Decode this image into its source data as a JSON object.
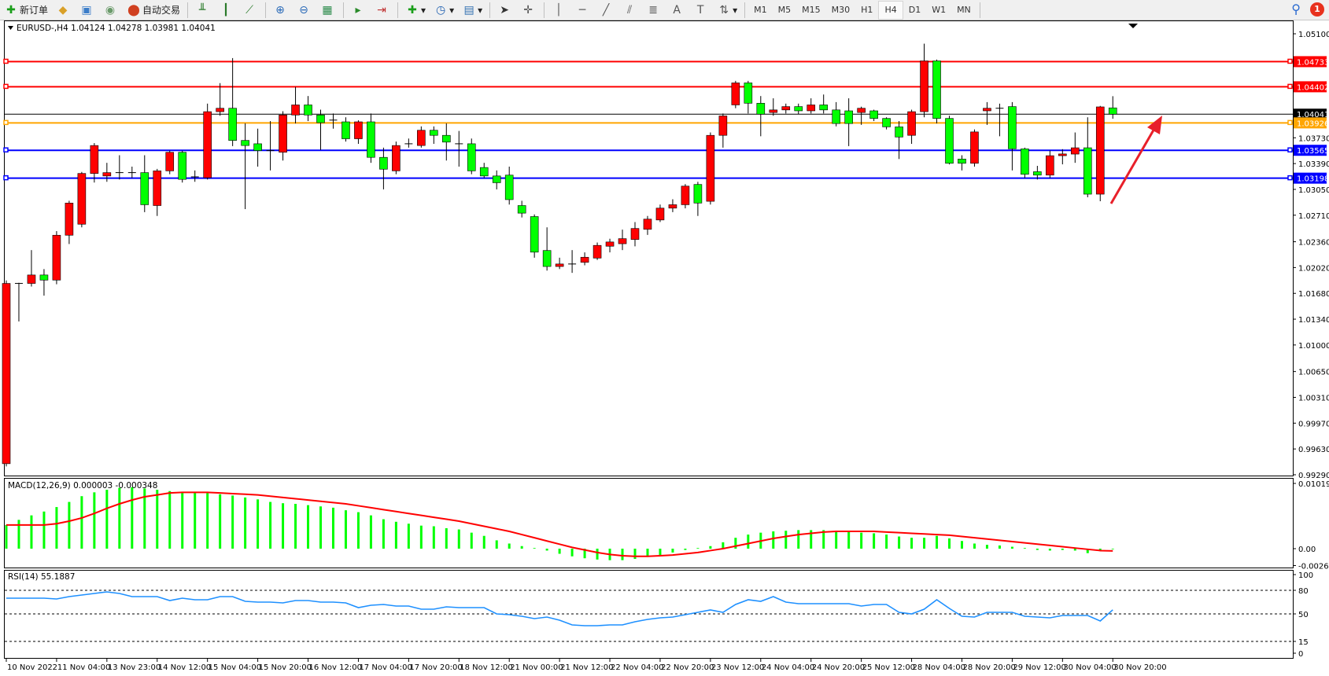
{
  "toolbar": {
    "items": [
      {
        "icon": "new-order-icon",
        "glyph": "✚",
        "color": "#1a9e1a",
        "label": "新订单"
      },
      {
        "icon": "market-watch-icon",
        "glyph": "◆",
        "color": "#d9a028",
        "label": ""
      },
      {
        "icon": "navigator-icon",
        "glyph": "▣",
        "color": "#3a7cc8",
        "label": ""
      },
      {
        "icon": "signal-icon",
        "glyph": "◉",
        "color": "#6a9a6a",
        "label": ""
      },
      {
        "icon": "auto-trading-icon",
        "glyph": "⬤",
        "color": "#d04020",
        "label": "自动交易"
      },
      {
        "sep": true
      },
      {
        "icon": "bar-chart-icon",
        "glyph": "╨",
        "color": "#2a7a2a",
        "label": ""
      },
      {
        "icon": "candlestick-chart-icon",
        "glyph": "┃",
        "color": "#2a7a2a",
        "label": ""
      },
      {
        "icon": "line-chart-icon",
        "glyph": "⟋",
        "color": "#2a7a2a",
        "label": ""
      },
      {
        "sep": true
      },
      {
        "icon": "zoom-in-icon",
        "glyph": "⊕",
        "color": "#2a6ab8",
        "label": ""
      },
      {
        "icon": "zoom-out-icon",
        "glyph": "⊖",
        "color": "#2a6ab8",
        "label": ""
      },
      {
        "icon": "tile-windows-icon",
        "glyph": "▦",
        "color": "#2a8a4a",
        "label": ""
      },
      {
        "sep": true
      },
      {
        "icon": "auto-scroll-icon",
        "glyph": "▸",
        "color": "#2a8a2a",
        "label": ""
      },
      {
        "icon": "chart-shift-icon",
        "glyph": "⇥",
        "color": "#c03030",
        "label": ""
      },
      {
        "sep": true
      },
      {
        "icon": "indicators-icon",
        "glyph": "✚",
        "color": "#1a9e1a",
        "label": "▾"
      },
      {
        "icon": "periods-clock-icon",
        "glyph": "◷",
        "color": "#2060b0",
        "label": "▾"
      },
      {
        "icon": "templates-icon",
        "glyph": "▤",
        "color": "#3070b0",
        "label": "▾"
      },
      {
        "sep": true
      },
      {
        "icon": "cursor-icon",
        "glyph": "➤",
        "color": "#333",
        "label": ""
      },
      {
        "icon": "crosshair-icon",
        "glyph": "✛",
        "color": "#555",
        "label": ""
      },
      {
        "sep": true
      },
      {
        "icon": "vertical-line-icon",
        "glyph": "│",
        "color": "#555",
        "label": ""
      },
      {
        "icon": "horizontal-line-icon",
        "glyph": "─",
        "color": "#555",
        "label": ""
      },
      {
        "icon": "trendline-icon",
        "glyph": "╱",
        "color": "#555",
        "label": ""
      },
      {
        "icon": "equidistant-channel-icon",
        "glyph": "⫽",
        "color": "#555",
        "label": ""
      },
      {
        "icon": "fibonacci-icon",
        "glyph": "≣",
        "color": "#555",
        "label": ""
      },
      {
        "icon": "text-icon",
        "glyph": "A",
        "color": "#555",
        "label": ""
      },
      {
        "icon": "text-label-icon",
        "glyph": "T",
        "color": "#555",
        "label": ""
      },
      {
        "icon": "arrows-icon",
        "glyph": "⇅",
        "color": "#555",
        "label": "▾"
      },
      {
        "sep": true
      }
    ],
    "timeframes": [
      "M1",
      "M5",
      "M15",
      "M30",
      "H1",
      "H4",
      "D1",
      "W1",
      "MN"
    ],
    "active_timeframe": "H4",
    "notification_count": "1"
  },
  "chart": {
    "title": "EURUSD-,H4  1.04124 1.04278 1.03981 1.04041",
    "colors": {
      "bull": "#ff0000",
      "bear": "#00ff00",
      "wick": "#000000"
    },
    "price_ticks": [
      "1.05100",
      "1.03730",
      "1.03390",
      "1.03050",
      "1.02710",
      "1.02360",
      "1.02020",
      "1.01680",
      "1.01340",
      "1.01000",
      "1.00650",
      "1.00310",
      "0.99970",
      "0.99630",
      "0.99290"
    ],
    "levels": [
      {
        "price": "1.04733",
        "color": "#ff0000"
      },
      {
        "price": "1.04402",
        "color": "#ff0000"
      },
      {
        "price": "1.04041",
        "color": "#000000"
      },
      {
        "price": "1.03926",
        "color": "#ffa500"
      },
      {
        "price": "1.03565",
        "color": "#0000ff"
      },
      {
        "price": "1.03198",
        "color": "#0000ff"
      }
    ],
    "arrow_color": "#e8202a",
    "time_labels": [
      "10 Nov 2022",
      "11 Nov 04:00",
      "13 Nov 23:00",
      "14 Nov 12:00",
      "15 Nov 04:00",
      "15 Nov 20:00",
      "16 Nov 12:00",
      "17 Nov 04:00",
      "17 Nov 20:00",
      "18 Nov 12:00",
      "21 Nov 00:00",
      "21 Nov 12:00",
      "22 Nov 04:00",
      "22 Nov 20:00",
      "23 Nov 12:00",
      "24 Nov 04:00",
      "24 Nov 20:00",
      "25 Nov 12:00",
      "28 Nov 04:00",
      "28 Nov 20:00",
      "29 Nov 12:00",
      "30 Nov 04:00",
      "30 Nov 20:00"
    ],
    "candles": [
      [
        0.99436,
        1.0185,
        0.994,
        1.01811
      ],
      [
        1.01811,
        1.0182,
        1.0131,
        1.018
      ],
      [
        1.01811,
        1.0225,
        1.0177,
        1.01922
      ],
      [
        1.01922,
        1.02,
        1.0165,
        1.01855
      ],
      [
        1.01855,
        1.025,
        1.018,
        1.02446
      ],
      [
        1.02446,
        1.029,
        1.0233,
        1.0287
      ],
      [
        1.02591,
        1.0328,
        1.0255,
        1.0326
      ],
      [
        1.0326,
        1.0366,
        1.0314,
        1.03628
      ],
      [
        1.03227,
        1.034,
        1.0315,
        1.03271
      ],
      [
        1.03271,
        1.035,
        1.0318,
        1.03271
      ],
      [
        1.03271,
        1.0335,
        1.032,
        1.0326
      ],
      [
        1.03271,
        1.035,
        1.0275,
        1.02848
      ],
      [
        1.02837,
        1.0332,
        1.027,
        1.03294
      ],
      [
        1.03294,
        1.0356,
        1.0325,
        1.03539
      ],
      [
        1.03539,
        1.0356,
        1.0314,
        1.03182
      ],
      [
        1.03204,
        1.033,
        1.0315,
        1.03215
      ],
      [
        1.03204,
        1.0418,
        1.0318,
        1.04074
      ],
      [
        1.04074,
        1.0445,
        1.0402,
        1.04119
      ],
      [
        1.04119,
        1.0478,
        1.0362,
        1.03695
      ],
      [
        1.03695,
        1.0392,
        1.0279,
        1.03628
      ],
      [
        1.03651,
        1.0385,
        1.0335,
        1.03561
      ],
      [
        1.03561,
        1.0395,
        1.033,
        1.03561
      ],
      [
        1.03539,
        1.0408,
        1.0343,
        1.0403
      ],
      [
        1.0403,
        1.044,
        1.0392,
        1.04163
      ],
      [
        1.04163,
        1.0428,
        1.0395,
        1.0403
      ],
      [
        1.0403,
        1.041,
        1.0357,
        1.03929
      ],
      [
        1.03963,
        1.0405,
        1.0385,
        1.03963
      ],
      [
        1.0394,
        1.04,
        1.0368,
        1.03717
      ],
      [
        1.03717,
        1.0396,
        1.0365,
        1.0394
      ],
      [
        1.0394,
        1.0405,
        1.034,
        1.03472
      ],
      [
        1.03472,
        1.036,
        1.0305,
        1.03316
      ],
      [
        1.03294,
        1.0368,
        1.0325,
        1.03628
      ],
      [
        1.03651,
        1.0372,
        1.036,
        1.03651
      ],
      [
        1.03628,
        1.0388,
        1.036,
        1.03829
      ],
      [
        1.03829,
        1.0388,
        1.0365,
        1.03762
      ],
      [
        1.03762,
        1.0392,
        1.0343,
        1.03673
      ],
      [
        1.03651,
        1.0382,
        1.0335,
        1.03651
      ],
      [
        1.03651,
        1.0372,
        1.0325,
        1.03294
      ],
      [
        1.03338,
        1.034,
        1.032,
        1.03227
      ],
      [
        1.03227,
        1.033,
        1.0305,
        1.03138
      ],
      [
        1.03238,
        1.0335,
        1.0285,
        1.02915
      ],
      [
        1.02837,
        1.029,
        1.0268,
        1.02737
      ],
      [
        1.02692,
        1.0272,
        1.0215,
        1.02223
      ],
      [
        1.02245,
        1.0255,
        1.0198,
        1.02034
      ],
      [
        1.02034,
        1.0215,
        1.02,
        1.02067
      ],
      [
        1.02067,
        1.0225,
        1.0195,
        1.02067
      ],
      [
        1.02089,
        1.0222,
        1.0205,
        1.02156
      ],
      [
        1.02145,
        1.0235,
        1.0212,
        1.02312
      ],
      [
        1.02301,
        1.024,
        1.0222,
        1.02357
      ],
      [
        1.02334,
        1.0252,
        1.0225,
        1.02401
      ],
      [
        1.0239,
        1.0262,
        1.023,
        1.02535
      ],
      [
        1.02524,
        1.027,
        1.0245,
        1.02658
      ],
      [
        1.02647,
        1.0285,
        1.0262,
        1.02803
      ],
      [
        1.02803,
        1.0292,
        1.0275,
        1.02848
      ],
      [
        1.02848,
        1.0312,
        1.028,
        1.03093
      ],
      [
        1.03115,
        1.0315,
        1.027,
        1.0287
      ],
      [
        1.02893,
        1.038,
        1.0285,
        1.03762
      ],
      [
        1.03762,
        1.0405,
        1.036,
        1.04018
      ],
      [
        1.04163,
        1.0448,
        1.0412,
        1.04453
      ],
      [
        1.04453,
        1.0448,
        1.0405,
        1.04185
      ],
      [
        1.04185,
        1.0428,
        1.0375,
        1.04041
      ],
      [
        1.04063,
        1.0425,
        1.0402,
        1.04097
      ],
      [
        1.04097,
        1.0418,
        1.0405,
        1.04141
      ],
      [
        1.04141,
        1.0418,
        1.0404,
        1.04085
      ],
      [
        1.04085,
        1.0425,
        1.0405,
        1.04163
      ],
      [
        1.04163,
        1.043,
        1.0405,
        1.04097
      ],
      [
        1.04097,
        1.042,
        1.0388,
        1.03918
      ],
      [
        1.04085,
        1.0425,
        1.0362,
        1.03918
      ],
      [
        1.04063,
        1.0414,
        1.039,
        1.04119
      ],
      [
        1.04085,
        1.041,
        1.0395,
        1.03985
      ],
      [
        1.03985,
        1.04,
        1.0384,
        1.03874
      ],
      [
        1.03874,
        1.0395,
        1.0345,
        1.0374
      ],
      [
        1.03762,
        1.041,
        1.0365,
        1.04074
      ],
      [
        1.04074,
        1.0497,
        1.04,
        1.04743
      ],
      [
        1.04743,
        1.0476,
        1.0392,
        1.03985
      ],
      [
        1.03985,
        1.0402,
        1.0338,
        1.03394
      ],
      [
        1.0345,
        1.035,
        1.033,
        1.03394
      ],
      [
        1.03394,
        1.0384,
        1.0335,
        1.03807
      ],
      [
        1.04085,
        1.042,
        1.039,
        1.04119
      ],
      [
        1.04119,
        1.0418,
        1.0375,
        1.04119
      ],
      [
        1.04141,
        1.042,
        1.033,
        1.03584
      ],
      [
        1.03584,
        1.036,
        1.032,
        1.03249
      ],
      [
        1.03283,
        1.0336,
        1.0318,
        1.03238
      ],
      [
        1.03238,
        1.0356,
        1.032,
        1.03494
      ],
      [
        1.03494,
        1.0358,
        1.0338,
        1.03517
      ],
      [
        1.03515,
        1.038,
        1.034,
        1.03598
      ],
      [
        1.03598,
        1.04,
        1.02946,
        1.02987
      ],
      [
        1.02987,
        1.0415,
        1.02894,
        1.04137
      ],
      [
        1.04124,
        1.04278,
        1.03981,
        1.04041
      ]
    ]
  },
  "macd": {
    "label": "MACD(12,26,9) 0.000003 -0.000348",
    "ticks": [
      "0.010191",
      "0.00",
      "-0.002642"
    ],
    "hist_color": "#00ff00",
    "signal_color": "#ff0000",
    "hist": [
      0.0037,
      0.0045,
      0.0052,
      0.0058,
      0.0065,
      0.0073,
      0.0082,
      0.0088,
      0.0092,
      0.0095,
      0.0096,
      0.0094,
      0.0092,
      0.009,
      0.0088,
      0.0088,
      0.0087,
      0.0085,
      0.0083,
      0.008,
      0.0077,
      0.0073,
      0.0071,
      0.007,
      0.0068,
      0.0066,
      0.0064,
      0.006,
      0.0057,
      0.0052,
      0.0046,
      0.0042,
      0.0039,
      0.0036,
      0.0035,
      0.0032,
      0.003,
      0.0025,
      0.002,
      0.0013,
      0.0008,
      0.0004,
      0.0001,
      -0.0003,
      -0.0008,
      -0.0012,
      -0.0015,
      -0.0017,
      -0.0018,
      -0.0018,
      -0.0016,
      -0.0013,
      -0.001,
      -0.0006,
      -0.0002,
      0.0001,
      0.0004,
      0.001,
      0.0017,
      0.0022,
      0.0025,
      0.0027,
      0.0028,
      0.0029,
      0.0029,
      0.0029,
      0.0028,
      0.0026,
      0.0025,
      0.0024,
      0.0022,
      0.0019,
      0.0017,
      0.0017,
      0.002,
      0.0016,
      0.0012,
      0.0008,
      0.0006,
      0.0005,
      0.0003,
      0.0001,
      -0.0002,
      -0.0003,
      -0.0002,
      -0.0003,
      -0.0007,
      -0.0003,
      3e-06
    ],
    "signal": [
      0.0037,
      0.0037,
      0.0037,
      0.0037,
      0.0039,
      0.0043,
      0.0048,
      0.0055,
      0.0063,
      0.007,
      0.0076,
      0.0081,
      0.0084,
      0.0087,
      0.0088,
      0.0088,
      0.0088,
      0.0087,
      0.0086,
      0.0085,
      0.0084,
      0.0082,
      0.008,
      0.0078,
      0.0076,
      0.0074,
      0.0072,
      0.007,
      0.0067,
      0.0064,
      0.0061,
      0.0058,
      0.0055,
      0.0052,
      0.0049,
      0.0046,
      0.0043,
      0.0039,
      0.0035,
      0.0031,
      0.0027,
      0.0022,
      0.0017,
      0.0012,
      0.0007,
      0.0002,
      -0.0002,
      -0.0006,
      -0.0009,
      -0.0011,
      -0.0012,
      -0.0012,
      -0.0011,
      -0.001,
      -0.0008,
      -0.0006,
      -0.0003,
      0.0,
      0.0004,
      0.0008,
      0.0012,
      0.0016,
      0.0019,
      0.0022,
      0.0024,
      0.0026,
      0.0027,
      0.0027,
      0.0027,
      0.0027,
      0.0026,
      0.0025,
      0.0024,
      0.0023,
      0.0022,
      0.0021,
      0.0019,
      0.0017,
      0.0015,
      0.0013,
      0.0011,
      0.0009,
      0.0007,
      0.0005,
      0.0003,
      0.0001,
      -0.0001,
      -0.0003,
      -0.000348
    ]
  },
  "rsi": {
    "label": "RSI(14) 55.1887",
    "ticks": [
      "100",
      "80",
      "50",
      "15",
      "0"
    ],
    "levels": [
      80,
      50,
      15
    ],
    "color": "#1e90ff",
    "values": [
      70,
      70,
      70,
      70,
      69,
      72,
      74,
      76,
      78,
      76,
      72,
      72,
      72,
      67,
      70,
      68,
      68,
      72,
      72,
      66,
      65,
      65,
      64,
      67,
      67,
      65,
      65,
      64,
      58,
      61,
      62,
      60,
      60,
      56,
      56,
      59,
      58,
      58,
      58,
      50,
      49,
      47,
      44,
      46,
      42,
      36,
      35,
      35,
      36,
      36,
      40,
      43,
      45,
      46,
      49,
      52,
      55,
      52,
      62,
      68,
      66,
      72,
      65,
      63,
      63,
      63,
      63,
      63,
      60,
      62,
      62,
      52,
      50,
      56,
      68,
      57,
      47,
      46,
      52,
      52,
      52,
      47,
      46,
      45,
      48,
      48,
      48,
      41,
      55.1887
    ]
  }
}
